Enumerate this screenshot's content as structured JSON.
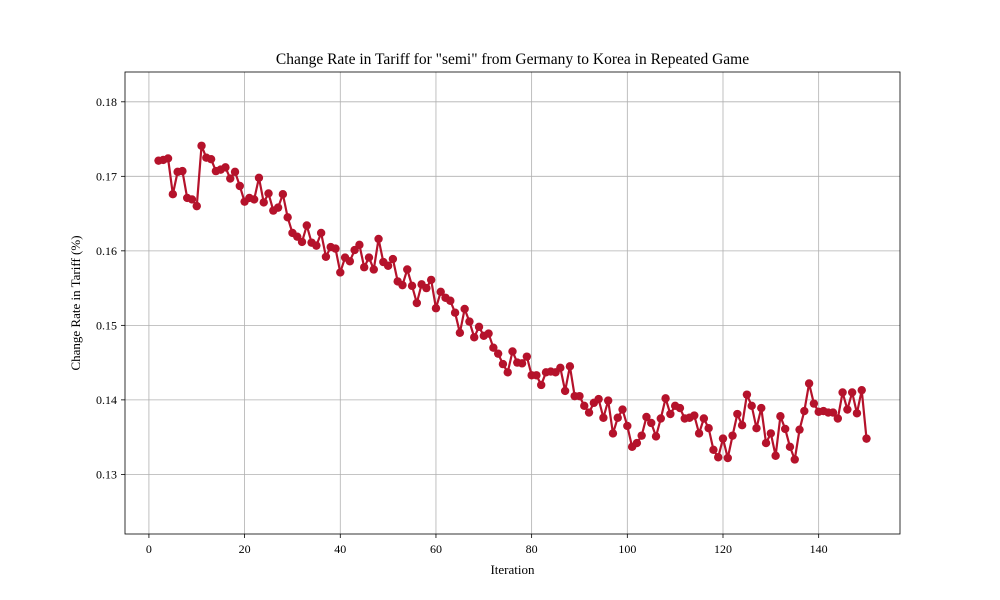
{
  "chart_data": {
    "type": "line",
    "title": "Change Rate in Tariff for \"semi\" from Germany to Korea in Repeated Game",
    "xlabel": "Iteration",
    "ylabel": "Change Rate in Tariff (%)",
    "xlim": [
      -5,
      157
    ],
    "ylim": [
      0.122,
      0.184
    ],
    "xticks": [
      0,
      20,
      40,
      60,
      80,
      100,
      120,
      140
    ],
    "yticks": [
      0.13,
      0.14,
      0.15,
      0.16,
      0.17,
      0.18
    ],
    "xtick_labels": [
      "0",
      "20",
      "40",
      "60",
      "80",
      "100",
      "120",
      "140"
    ],
    "ytick_labels": [
      "0.13",
      "0.14",
      "0.15",
      "0.16",
      "0.17",
      "0.18"
    ],
    "grid": true,
    "color": "#b5122b",
    "markers": "circle",
    "series": [
      {
        "x": [
          2,
          3,
          4,
          5,
          6,
          7,
          8,
          9,
          10,
          11,
          12,
          13,
          14,
          15,
          16,
          17,
          18,
          19,
          20,
          21,
          22,
          23,
          24,
          25,
          26,
          27,
          28,
          29,
          30,
          31,
          32,
          33,
          34,
          35,
          36,
          37,
          38,
          39,
          40,
          41,
          42,
          43,
          44,
          45,
          46,
          47,
          48,
          49,
          50,
          51,
          52,
          53,
          54,
          55,
          56,
          57,
          58,
          59,
          60,
          61,
          62,
          63,
          64,
          65,
          66,
          67,
          68,
          69,
          70,
          71,
          72,
          73,
          74,
          75,
          76,
          77,
          78,
          79,
          80,
          81,
          82,
          83,
          84,
          85,
          86,
          87,
          88,
          89,
          90,
          91,
          92,
          93,
          94,
          95,
          96,
          97,
          98,
          99,
          100,
          101,
          102,
          103,
          104,
          105,
          106,
          107,
          108,
          109,
          110,
          111,
          112,
          113,
          114,
          115,
          116,
          117,
          118,
          119,
          120,
          121,
          122,
          123,
          124,
          125,
          126,
          127,
          128,
          129,
          130,
          131,
          132,
          133,
          134,
          135,
          136,
          137,
          138,
          139,
          140,
          141,
          142,
          143,
          144,
          145,
          146,
          147,
          148,
          149,
          150
        ],
        "y": [
          0.1721,
          0.1722,
          0.1724,
          0.1676,
          0.1706,
          0.1707,
          0.1671,
          0.1669,
          0.166,
          0.1741,
          0.1725,
          0.1723,
          0.1707,
          0.1709,
          0.1712,
          0.1697,
          0.1706,
          0.1687,
          0.1666,
          0.1671,
          0.1669,
          0.1698,
          0.1665,
          0.1677,
          0.1654,
          0.1658,
          0.1676,
          0.1645,
          0.1624,
          0.1619,
          0.1612,
          0.1634,
          0.1611,
          0.1607,
          0.1624,
          0.1592,
          0.1605,
          0.1603,
          0.1571,
          0.1591,
          0.1586,
          0.1601,
          0.1608,
          0.1578,
          0.1591,
          0.1575,
          0.1616,
          0.1585,
          0.158,
          0.1589,
          0.1559,
          0.1554,
          0.1575,
          0.1553,
          0.153,
          0.1555,
          0.155,
          0.1561,
          0.1523,
          0.1545,
          0.1537,
          0.1533,
          0.1517,
          0.149,
          0.1522,
          0.1505,
          0.1484,
          0.1498,
          0.1486,
          0.1489,
          0.147,
          0.1462,
          0.1448,
          0.1437,
          0.1465,
          0.145,
          0.1449,
          0.1458,
          0.1433,
          0.1433,
          0.142,
          0.1437,
          0.1438,
          0.1437,
          0.1443,
          0.1412,
          0.1445,
          0.1405,
          0.1405,
          0.1392,
          0.1383,
          0.1396,
          0.1401,
          0.1376,
          0.1399,
          0.1355,
          0.1376,
          0.1387,
          0.1365,
          0.1337,
          0.1342,
          0.1352,
          0.1377,
          0.1369,
          0.1351,
          0.1375,
          0.1402,
          0.1381,
          0.1392,
          0.1389,
          0.1375,
          0.1376,
          0.1379,
          0.1355,
          0.1375,
          0.1362,
          0.1333,
          0.1323,
          0.1348,
          0.1322,
          0.1352,
          0.1381,
          0.1366,
          0.1407,
          0.1392,
          0.1362,
          0.1389,
          0.1342,
          0.1355,
          0.1325,
          0.1378,
          0.1361,
          0.1337,
          0.132,
          0.136,
          0.1385,
          0.1422,
          0.1395,
          0.1384,
          0.1385,
          0.1383,
          0.1383,
          0.1375,
          0.141,
          0.1387,
          0.141,
          0.1382,
          0.1413,
          0.1348
        ]
      }
    ]
  }
}
